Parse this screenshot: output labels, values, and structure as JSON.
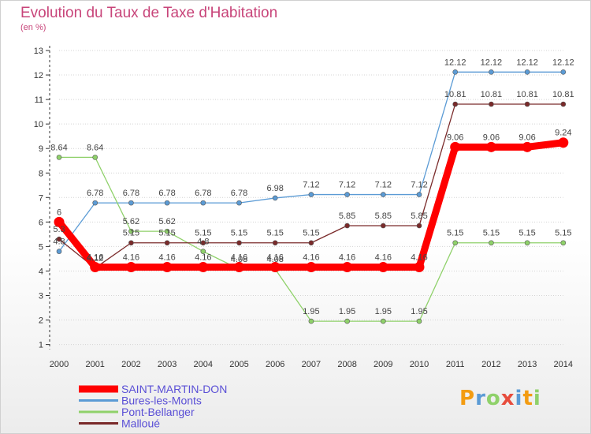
{
  "chart_data": {
    "type": "line",
    "title": "Evolution du Taux de Taxe d'Habitation",
    "unit_label": "(en %)",
    "x": [
      "2000",
      "2001",
      "2002",
      "2003",
      "2004",
      "2005",
      "2006",
      "2007",
      "2008",
      "2009",
      "2010",
      "2011",
      "2012",
      "2013",
      "2014"
    ],
    "yticks": [
      "1",
      "2",
      "3",
      "4",
      "5",
      "6",
      "7",
      "8",
      "9",
      "10",
      "11",
      "12",
      "13"
    ],
    "ylim": [
      1,
      13
    ],
    "series": [
      {
        "name": "SAINT-MARTIN-DON",
        "color": "#ff0000",
        "values": [
          6,
          4.16,
          4.16,
          4.16,
          4.16,
          4.16,
          4.16,
          4.16,
          4.16,
          4.16,
          4.16,
          9.06,
          9.06,
          9.06,
          9.24
        ],
        "labels": [
          "6",
          "4.16",
          "4.16",
          "4.16",
          "4.16",
          "4.16",
          "4.16",
          "4.16",
          "4.16",
          "4.16",
          "4.16",
          "9.06",
          "9.06",
          "9.06",
          "9.24"
        ]
      },
      {
        "name": "Bures-les-Monts",
        "color": "#5b9bd5",
        "values": [
          4.8,
          6.78,
          6.78,
          6.78,
          6.78,
          6.78,
          6.98,
          7.12,
          7.12,
          7.12,
          7.12,
          12.12,
          12.12,
          12.12,
          12.12
        ],
        "labels": [
          "4.8",
          "6.78",
          "6.78",
          "6.78",
          "6.78",
          "6.78",
          "6.98",
          "7.12",
          "7.12",
          "7.12",
          "7.12",
          "12.12",
          "12.12",
          "12.12",
          "12.12"
        ]
      },
      {
        "name": "Pont-Bellanger",
        "color": "#8fd16a",
        "values": [
          8.64,
          8.64,
          5.62,
          5.62,
          4.8,
          4.08,
          4.08,
          1.95,
          1.95,
          1.95,
          1.95,
          5.15,
          5.15,
          5.15,
          5.15
        ],
        "labels": [
          "8.64",
          "8.64",
          "5.62",
          "5.62",
          "4.8",
          "4.08",
          "4.08",
          "1.95",
          "1.95",
          "1.95",
          "1.95",
          "5.15",
          "5.15",
          "5.15",
          "5.15"
        ]
      },
      {
        "name": "Malloué",
        "color": "#7a2a2a",
        "values": [
          5.3,
          4.12,
          5.15,
          5.15,
          5.15,
          5.15,
          5.15,
          5.15,
          5.85,
          5.85,
          5.85,
          10.81,
          10.81,
          10.81,
          10.81
        ],
        "labels": [
          "5.3",
          "4.12",
          "5.15",
          "5.15",
          "5.15",
          "5.15",
          "5.15",
          "5.15",
          "5.85",
          "5.85",
          "5.85",
          "10.81",
          "10.81",
          "10.81",
          "10.81"
        ]
      }
    ],
    "grid": true,
    "legend_position": "bottom-left"
  },
  "logo": {
    "p": "P",
    "r": "r",
    "o": "o",
    "x": "x",
    "i": "i",
    "t": "t",
    "i2": "i"
  }
}
